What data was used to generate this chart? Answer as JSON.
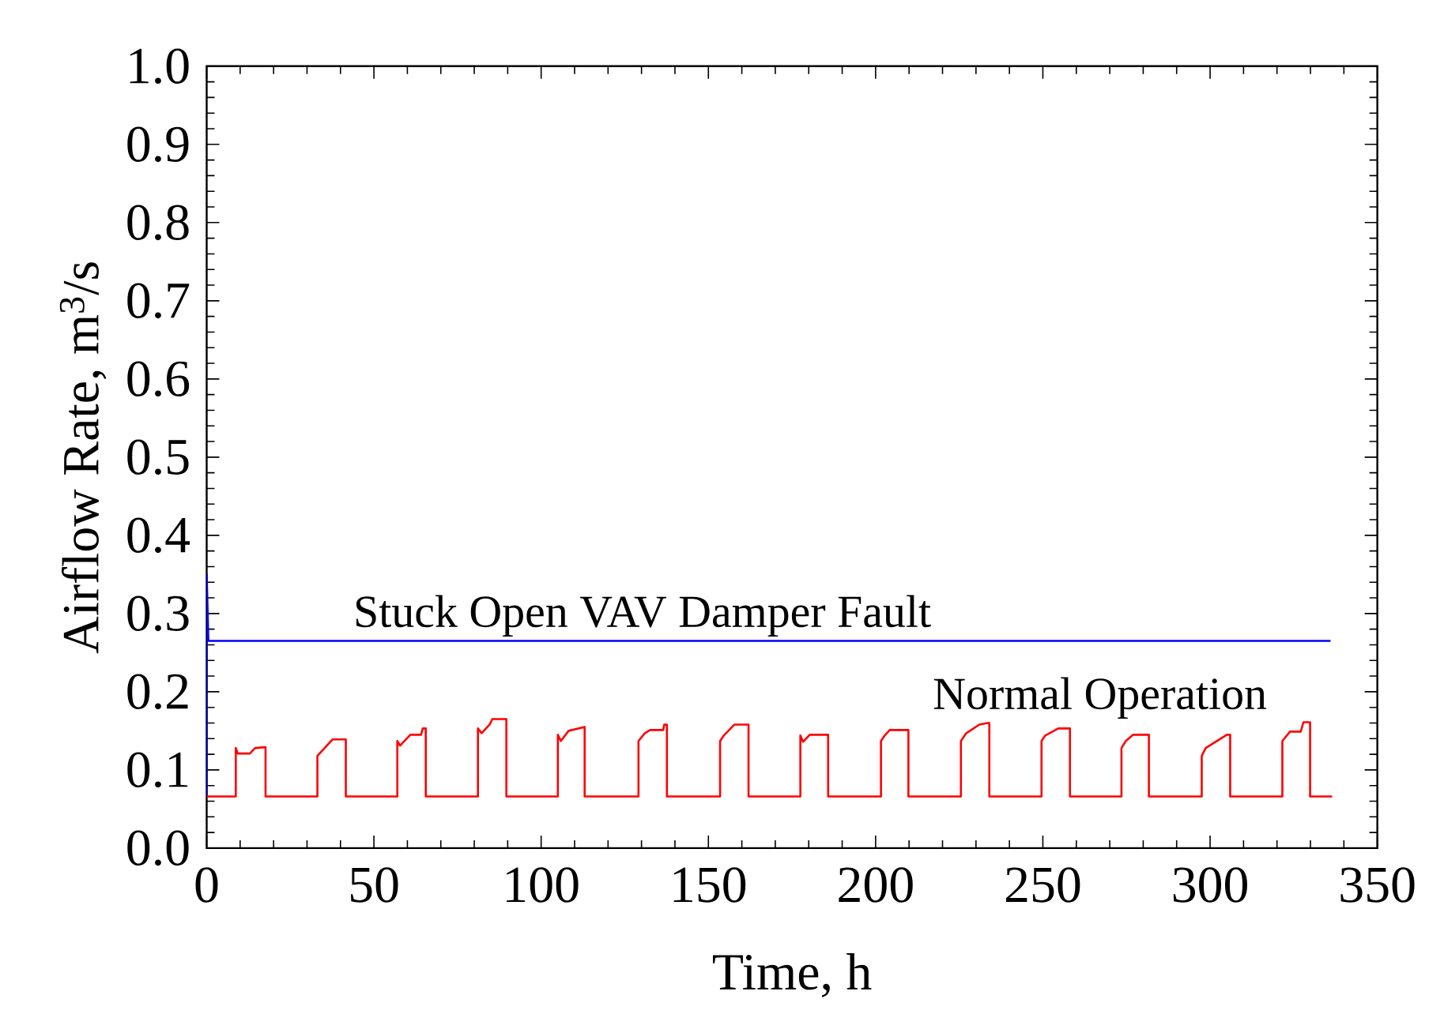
{
  "chart_data": {
    "type": "line",
    "xlabel": "Time, h",
    "ylabel": "Airflow Rate, m$^{3}$/s",
    "xlim": [
      0,
      350
    ],
    "xticks": [
      0,
      50,
      100,
      150,
      200,
      250,
      300,
      350
    ],
    "ylim": [
      0,
      1
    ],
    "yticks": [
      {
        "value": 0,
        "label": "0.0"
      },
      {
        "value": 0.1,
        "label": "0.1"
      },
      {
        "value": 0.2,
        "label": "0.2"
      },
      {
        "value": 0.3,
        "label": "0.3"
      },
      {
        "value": 0.4,
        "label": "0.4"
      },
      {
        "value": 0.5,
        "label": "0.5"
      },
      {
        "value": 0.6,
        "label": "0.6"
      },
      {
        "value": 0.7,
        "label": "0.7"
      },
      {
        "value": 0.8,
        "label": "0.8"
      },
      {
        "value": 0.9,
        "label": "0.9"
      },
      {
        "value": 1,
        "label": "1.0"
      }
    ],
    "grid": false,
    "legend": false,
    "marker": "none",
    "line_style": "solid",
    "series": [
      {
        "name": "Stuck Open VAV Damper Fault",
        "color": "#0000ff",
        "x": [
          0,
          0,
          0.5,
          336
        ],
        "values": [
          0.066,
          0.35,
          0.265,
          0.265
        ]
      },
      {
        "name": "Normal Operation",
        "color": "#ff0000",
        "x": [
          0,
          8.7,
          8.7,
          9.3,
          12.9,
          14.5,
          17.6,
          17.6,
          33.1,
          33.1,
          37.6,
          41.6,
          41.6,
          57.0,
          57.0,
          57.8,
          60.9,
          64.1,
          64.6,
          65.5,
          65.5,
          81.1,
          81.1,
          82.2,
          84.6,
          85.4,
          89.6,
          89.6,
          105.0,
          105.0,
          105.9,
          108.2,
          113.0,
          113.0,
          129.1,
          129.1,
          131.0,
          132.6,
          136.5,
          136.8,
          137.6,
          137.6,
          153.5,
          153.5,
          154.6,
          157.8,
          162.0,
          162.0,
          177.5,
          177.5,
          178.3,
          180.3,
          185.8,
          185.8,
          201.6,
          201.6,
          202.7,
          204.2,
          209.8,
          209.8,
          225.5,
          225.5,
          227.1,
          231.0,
          233.4,
          234.0,
          234.0,
          249.6,
          249.6,
          250.7,
          254.6,
          258.1,
          258.1,
          273.5,
          273.5,
          274.8,
          277.0,
          281.7,
          281.7,
          297.5,
          297.5,
          298.7,
          305.0,
          306.0,
          306.0,
          321.6,
          321.6,
          323.9,
          327.1,
          327.9,
          329.9,
          329.9,
          336.5
        ],
        "values": [
          0.066,
          0.066,
          0.128,
          0.121,
          0.121,
          0.128,
          0.129,
          0.066,
          0.066,
          0.118,
          0.139,
          0.139,
          0.066,
          0.066,
          0.137,
          0.131,
          0.145,
          0.145,
          0.153,
          0.153,
          0.066,
          0.066,
          0.153,
          0.147,
          0.158,
          0.165,
          0.165,
          0.066,
          0.066,
          0.145,
          0.137,
          0.15,
          0.155,
          0.066,
          0.066,
          0.137,
          0.147,
          0.151,
          0.151,
          0.158,
          0.158,
          0.066,
          0.066,
          0.137,
          0.144,
          0.158,
          0.158,
          0.066,
          0.066,
          0.144,
          0.136,
          0.145,
          0.145,
          0.066,
          0.066,
          0.137,
          0.144,
          0.151,
          0.151,
          0.066,
          0.066,
          0.137,
          0.147,
          0.158,
          0.16,
          0.16,
          0.066,
          0.066,
          0.137,
          0.144,
          0.153,
          0.153,
          0.066,
          0.066,
          0.128,
          0.137,
          0.145,
          0.145,
          0.066,
          0.066,
          0.118,
          0.128,
          0.145,
          0.145,
          0.066,
          0.066,
          0.137,
          0.149,
          0.149,
          0.161,
          0.161,
          0.066,
          0.066
        ]
      }
    ]
  }
}
